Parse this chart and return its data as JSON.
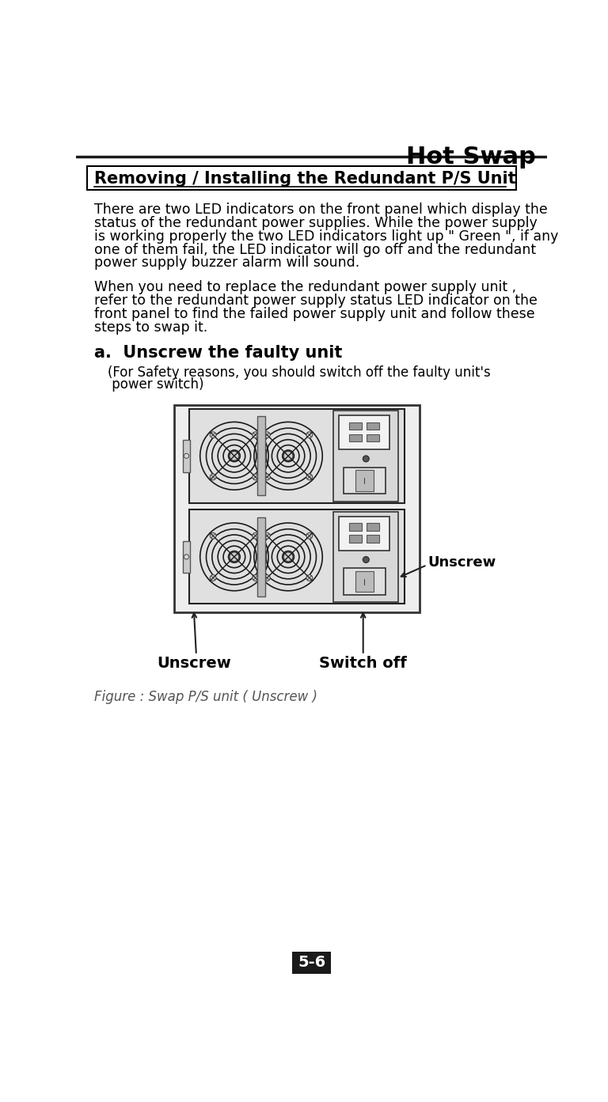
{
  "title_header": "Hot Swap",
  "section_title": "Removing / Installing the Redundant P/S Unit",
  "p1_lines": [
    "There are two LED indicators on the front panel which display the",
    "status of the redundant power supplies. While the power supply",
    "is working properly the two LED indicators light up \" Green \", if any",
    "one of them fail, the LED indicator will go off and the redundant",
    "power supply buzzer alarm will sound."
  ],
  "p2_lines": [
    "When you need to replace the redundant power supply unit ,",
    "refer to the redundant power supply status LED indicator on the",
    "front panel to find the failed power supply unit and follow these",
    "steps to swap it."
  ],
  "step_title": "a.  Unscrew the faulty unit",
  "step_sub1": "(For Safety reasons, you should switch off the faulty unit's",
  "step_sub2": " power switch)",
  "label_unscrew_left": "Unscrew",
  "label_switch_off": "Switch off",
  "label_unscrew_right": "Unscrew",
  "figure_caption": "Figure : Swap P/S unit ( Unscrew )",
  "page_number": "5-6",
  "bg_color": "#ffffff",
  "text_color": "#000000",
  "header_line_color": "#1a1a1a",
  "box_border_color": "#000000",
  "page_num_bg": "#1a1a1a",
  "page_num_fg": "#ffffff"
}
